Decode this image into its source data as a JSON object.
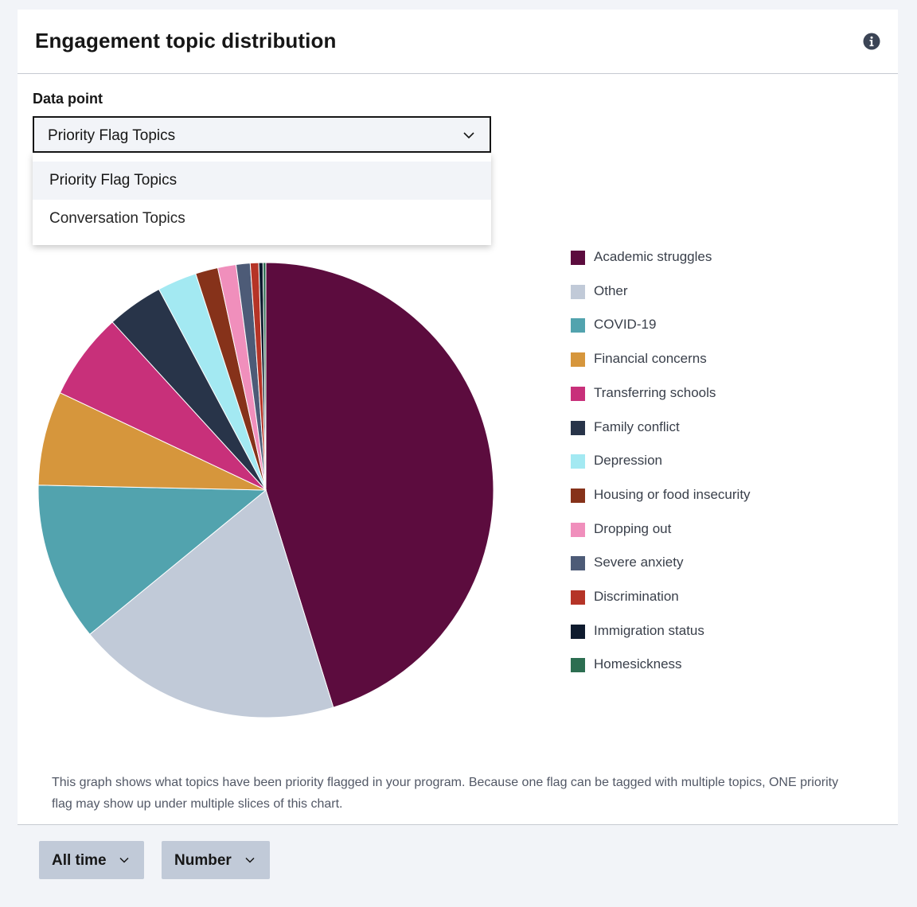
{
  "header": {
    "title": "Engagement topic distribution",
    "info_icon": "info-icon"
  },
  "data_point": {
    "label": "Data point",
    "selected": "Priority Flag Topics",
    "options": [
      "Priority Flag Topics",
      "Conversation Topics"
    ]
  },
  "note": "This graph shows what topics have been priority flagged in your program. Because one flag can be tagged with multiple topics, ONE priority flag may show up under multiple slices of this chart.",
  "footer": {
    "time_range": "All time",
    "metric": "Number"
  },
  "chart_data": {
    "type": "pie",
    "title": "",
    "legend_position": "right",
    "slices": [
      {
        "label": "Academic struggles",
        "value": 45.3,
        "color": "#5c0c3e"
      },
      {
        "label": "Other",
        "value": 18.9,
        "color": "#c1cad8"
      },
      {
        "label": "COVID-19",
        "value": 11.3,
        "color": "#52a3ae"
      },
      {
        "label": "Financial concerns",
        "value": 6.7,
        "color": "#d6963c"
      },
      {
        "label": "Transferring schools",
        "value": 6.2,
        "color": "#c8307a"
      },
      {
        "label": "Family conflict",
        "value": 4.0,
        "color": "#283449"
      },
      {
        "label": "Depression",
        "value": 2.8,
        "color": "#a3e9f2"
      },
      {
        "label": "Housing or food insecurity",
        "value": 1.6,
        "color": "#86321a"
      },
      {
        "label": "Dropping out",
        "value": 1.3,
        "color": "#f08fbc"
      },
      {
        "label": "Severe anxiety",
        "value": 1.0,
        "color": "#4d5b77"
      },
      {
        "label": "Discrimination",
        "value": 0.6,
        "color": "#b53427"
      },
      {
        "label": "Immigration status",
        "value": 0.3,
        "color": "#0e1b2e"
      },
      {
        "label": "Homesickness",
        "value": 0.2,
        "color": "#2c6e51"
      }
    ]
  }
}
